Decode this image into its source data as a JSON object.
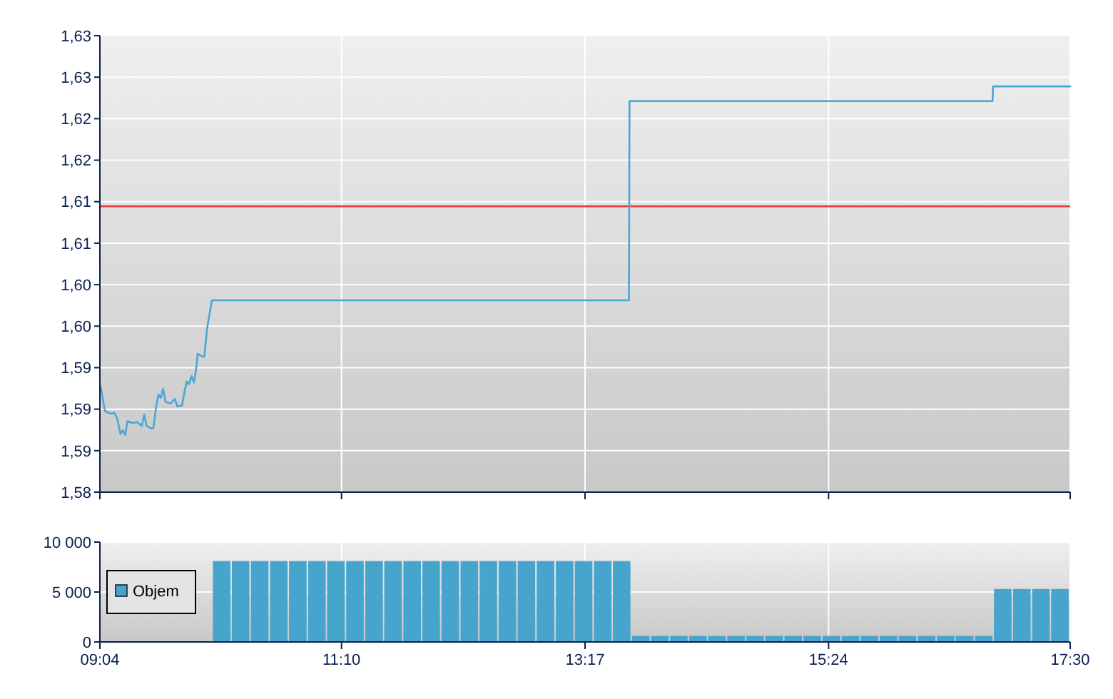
{
  "chart_data": [
    {
      "type": "line",
      "x": [
        9.073,
        9.11,
        9.163,
        9.193,
        9.217,
        9.246,
        9.267,
        9.287,
        9.307,
        9.348,
        9.39,
        9.431,
        9.452,
        9.472,
        9.514,
        9.533,
        9.554,
        9.575,
        9.595,
        9.616,
        9.637,
        9.678,
        9.719,
        9.74,
        9.78,
        9.801,
        9.822,
        9.842,
        9.863,
        9.884,
        9.904,
        9.916,
        9.958,
        9.974,
        9.999,
        10.04,
        13.665,
        13.67,
        16.825,
        16.83,
        17.5
      ],
      "values": [
        1.592,
        1.5893,
        1.589,
        1.5891,
        1.5885,
        1.5868,
        1.5872,
        1.5867,
        1.5882,
        1.588,
        1.5881,
        1.5877,
        1.5889,
        1.5877,
        1.5874,
        1.5875,
        1.5896,
        1.5911,
        1.5907,
        1.5917,
        1.5903,
        1.5901,
        1.5906,
        1.5898,
        1.5899,
        1.5913,
        1.5925,
        1.5922,
        1.5931,
        1.5924,
        1.5939,
        1.5955,
        1.5952,
        1.5952,
        1.5983,
        1.6013,
        1.6013,
        1.6229,
        1.6229,
        1.6245,
        1.6245
      ],
      "color": "#4aa7d3",
      "xlim": [
        9.0667,
        17.5
      ],
      "xticks": [
        {
          "value": 9.0667,
          "label": null
        },
        {
          "value": 11.1667,
          "label": null
        },
        {
          "value": 13.2833,
          "label": null
        },
        {
          "value": 15.4,
          "label": null
        },
        {
          "value": 17.5,
          "label": null
        }
      ],
      "ylim": [
        1.5805,
        1.63
      ],
      "yticks": [
        {
          "value": 1.5805,
          "label": "1,58"
        },
        {
          "value": 1.585,
          "label": "1,59"
        },
        {
          "value": 1.5895,
          "label": "1,59"
        },
        {
          "value": 1.594,
          "label": "1,59"
        },
        {
          "value": 1.5985,
          "label": "1,60"
        },
        {
          "value": 1.603,
          "label": "1,60"
        },
        {
          "value": 1.6075,
          "label": "1,61"
        },
        {
          "value": 1.612,
          "label": "1,61"
        },
        {
          "value": 1.6165,
          "label": "1,62"
        },
        {
          "value": 1.621,
          "label": "1,62"
        },
        {
          "value": 1.6255,
          "label": "1,63"
        },
        {
          "value": 1.63,
          "label": "1,63"
        }
      ],
      "ref_lines": [
        {
          "axis": "y",
          "value": 1.6115,
          "color": "#e83a3a"
        }
      ],
      "grid": true,
      "tick_labels": "y"
    },
    {
      "type": "bar",
      "x": [
        10.131,
        10.296,
        10.462,
        10.628,
        10.793,
        10.959,
        11.124,
        11.29,
        11.456,
        11.621,
        11.787,
        11.952,
        12.118,
        12.284,
        12.449,
        12.615,
        12.78,
        12.946,
        13.112,
        13.277,
        13.443,
        13.608,
        13.774,
        13.94,
        14.105,
        14.271,
        14.436,
        14.602,
        14.768,
        14.933,
        15.099,
        15.264,
        15.43,
        15.596,
        15.761,
        15.927,
        16.092,
        16.258,
        16.424,
        16.589,
        16.755,
        16.92,
        17.086,
        17.252,
        17.417
      ],
      "series": [
        {
          "name": "Objem",
          "color": "#47a5cd",
          "values": [
            8100,
            8100,
            8100,
            8100,
            8100,
            8100,
            8100,
            8100,
            8100,
            8100,
            8100,
            8100,
            8100,
            8100,
            8100,
            8100,
            8100,
            8100,
            8100,
            8100,
            8100,
            8100,
            600,
            600,
            600,
            600,
            600,
            600,
            600,
            600,
            600,
            600,
            600,
            600,
            600,
            600,
            600,
            600,
            600,
            600,
            600,
            5300,
            5300,
            5300,
            5300
          ]
        }
      ],
      "xlim": [
        9.0667,
        17.5
      ],
      "xticks": [
        {
          "value": 9.0667,
          "label": "09:04"
        },
        {
          "value": 11.1667,
          "label": "11:10"
        },
        {
          "value": 13.2833,
          "label": "13:17"
        },
        {
          "value": 15.4,
          "label": "15:24"
        },
        {
          "value": 17.5,
          "label": "17:30"
        }
      ],
      "ylim": [
        0,
        10000
      ],
      "yticks": [
        {
          "value": 0,
          "label": "0"
        },
        {
          "value": 5000,
          "label": "5 000"
        },
        {
          "value": 10000,
          "label": "10 000"
        }
      ],
      "grid": true,
      "legend": "left"
    }
  ]
}
